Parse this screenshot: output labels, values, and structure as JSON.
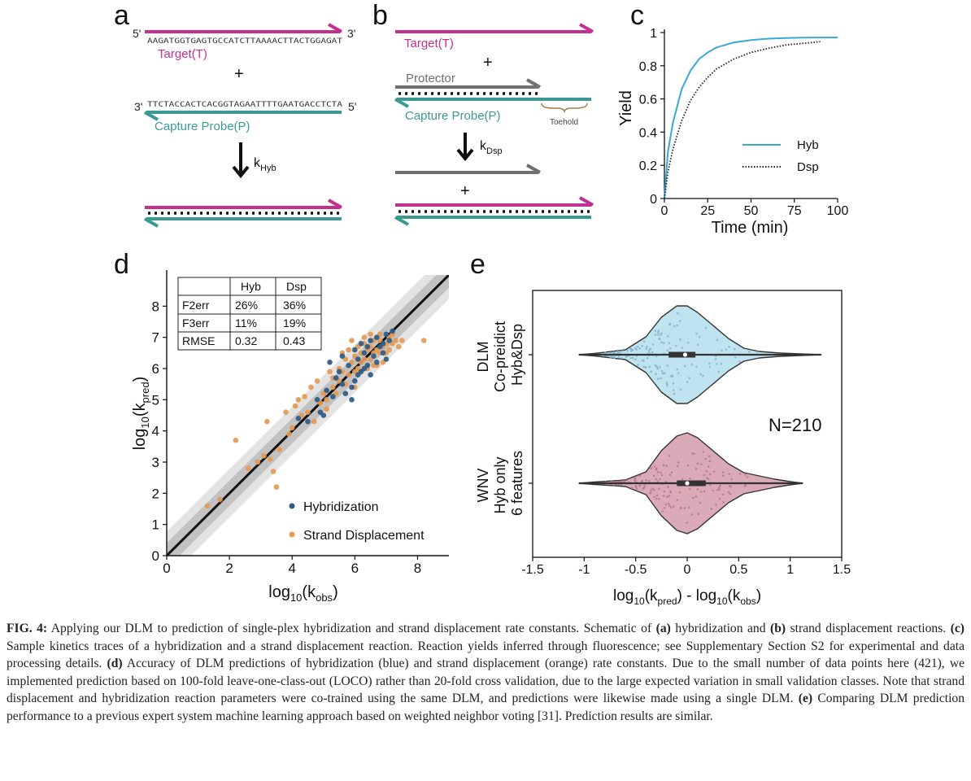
{
  "panels": {
    "a": {
      "label": "a",
      "top_5prime": "5'",
      "top_3prime": "3'",
      "top_seq": "AAGATGGTGAGTGCCATCTTAAAACTTACTGGAGAT",
      "target_label": "Target(T)",
      "plus": "+",
      "bottom_3prime": "3'",
      "bottom_5prime": "5'",
      "bottom_seq": "TTCTACCACTCACGGTAGAATTTTGAATGACCTCTA",
      "probe_label": "Capture Probe(P)",
      "rate_k": "k",
      "rate_sub": "Hyb"
    },
    "b": {
      "label": "b",
      "target_label": "Target(T)",
      "plus1": "+",
      "protector_label": "Protector",
      "probe_label": "Capture Probe(P)",
      "toehold_label": "Toehold",
      "rate_k": "k",
      "rate_sub": "Dsp",
      "plus2": "+"
    },
    "c": {
      "label": "c",
      "ylabel": "Yield",
      "xlabel": "Time (min)",
      "legend": [
        "Hyb",
        "Dsp"
      ]
    },
    "d": {
      "label": "d",
      "xlabel_main": "log",
      "xlabel_sub1": "10",
      "xlabel_paren": "(k",
      "xlabel_sub2": "obs",
      "xlabel_close": ")",
      "ylabel_main": "log",
      "ylabel_sub1": "10",
      "ylabel_paren": "(k",
      "ylabel_sub2": "pred",
      "ylabel_close": ")",
      "table": {
        "headers": [
          "",
          "Hyb",
          "Dsp"
        ],
        "rows": [
          [
            "F2err",
            "26%",
            "36%"
          ],
          [
            "F3err",
            "11%",
            "19%"
          ],
          [
            "RMSE",
            "0.32",
            "0.43"
          ]
        ]
      },
      "legend": [
        "Hybridization",
        "Strand Displacement"
      ]
    },
    "e": {
      "label": "e",
      "group1_lines": [
        "DLM",
        "Co-preidict",
        "Hyb&Dsp"
      ],
      "group2_lines": [
        "WNV",
        "Hyb only",
        "6 features"
      ],
      "n_label": "N=210",
      "xlabel_a": "log",
      "xlabel_b": "10",
      "xlabel_c": "(k",
      "xlabel_d": "pred",
      "xlabel_e": ") - log",
      "xlabel_f": "10",
      "xlabel_g": "(k",
      "xlabel_h": "obs",
      "xlabel_i": ")"
    }
  },
  "colors": {
    "target": "#c2318f",
    "probe": "#3a9a92",
    "protector": "#707070",
    "hyb_curve": "#3aa9d6",
    "hyb_point": "#2d5a86",
    "dsp_point": "#e59a55",
    "violin1": "#bfe3ef",
    "violin2": "#dbaab9"
  },
  "chart_data": [
    {
      "type": "line",
      "panel": "c",
      "xlabel": "Time (min)",
      "ylabel": "Yield",
      "xlim": [
        0,
        100
      ],
      "ylim": [
        0,
        1
      ],
      "xticks": [
        0,
        25,
        50,
        75,
        100
      ],
      "yticks": [
        0,
        0.2,
        0.4,
        0.6,
        0.8,
        1
      ],
      "legend_position": "bottom-right",
      "series": [
        {
          "name": "Hyb",
          "style": "solid",
          "x": [
            0,
            2,
            5,
            10,
            15,
            20,
            25,
            30,
            40,
            50,
            60,
            70,
            80,
            90,
            100
          ],
          "y": [
            0,
            0.28,
            0.46,
            0.66,
            0.77,
            0.84,
            0.88,
            0.91,
            0.94,
            0.955,
            0.963,
            0.967,
            0.969,
            0.97,
            0.97
          ]
        },
        {
          "name": "Dsp",
          "style": "dotted",
          "x": [
            0,
            2,
            5,
            10,
            15,
            20,
            25,
            30,
            40,
            50,
            60,
            70,
            80,
            90
          ],
          "y": [
            0,
            0.16,
            0.3,
            0.47,
            0.59,
            0.67,
            0.73,
            0.78,
            0.84,
            0.88,
            0.905,
            0.925,
            0.935,
            0.945
          ]
        }
      ]
    },
    {
      "type": "scatter",
      "panel": "d",
      "xlim": [
        0,
        9
      ],
      "ylim": [
        0,
        9
      ],
      "xticks": [
        0,
        2,
        4,
        6,
        8
      ],
      "yticks": [
        0,
        1,
        2,
        3,
        4,
        5,
        6,
        7,
        8
      ],
      "diagonal": true,
      "legend_position": "bottom-right",
      "series": [
        {
          "name": "Hybridization",
          "points": [
            [
              4.2,
              4.4
            ],
            [
              4.5,
              4.3
            ],
            [
              4.8,
              5.0
            ],
            [
              4.9,
              4.6
            ],
            [
              5.1,
              5.3
            ],
            [
              5.2,
              6.2
            ],
            [
              5.3,
              5.1
            ],
            [
              5.4,
              5.7
            ],
            [
              5.5,
              5.9
            ],
            [
              5.6,
              6.4
            ],
            [
              5.7,
              5.2
            ],
            [
              5.8,
              6.1
            ],
            [
              5.9,
              5.0
            ],
            [
              6.0,
              6.6
            ],
            [
              6.0,
              5.6
            ],
            [
              6.1,
              6.3
            ],
            [
              6.2,
              6.8
            ],
            [
              6.2,
              5.9
            ],
            [
              6.3,
              6.5
            ],
            [
              6.4,
              6.1
            ],
            [
              6.5,
              6.9
            ],
            [
              6.5,
              5.8
            ],
            [
              6.6,
              6.4
            ],
            [
              6.7,
              7.0
            ],
            [
              6.7,
              6.2
            ],
            [
              6.8,
              6.7
            ],
            [
              6.9,
              6.5
            ],
            [
              7.0,
              7.1
            ],
            [
              7.0,
              6.3
            ],
            [
              7.1,
              6.9
            ],
            [
              7.2,
              7.2
            ],
            [
              5.0,
              4.5
            ],
            [
              5.9,
              5.4
            ],
            [
              6.3,
              6.0
            ],
            [
              6.9,
              6.8
            ],
            [
              5.6,
              5.5
            ],
            [
              6.1,
              5.8
            ],
            [
              6.4,
              6.7
            ]
          ]
        },
        {
          "name": "Strand Displacement",
          "points": [
            [
              1.3,
              1.6
            ],
            [
              1.7,
              1.8
            ],
            [
              2.2,
              3.7
            ],
            [
              2.6,
              2.8
            ],
            [
              2.9,
              3.0
            ],
            [
              3.1,
              3.2
            ],
            [
              3.2,
              4.3
            ],
            [
              3.3,
              3.1
            ],
            [
              3.4,
              2.7
            ],
            [
              3.5,
              2.2
            ],
            [
              3.6,
              3.4
            ],
            [
              3.8,
              4.6
            ],
            [
              3.9,
              3.9
            ],
            [
              4.0,
              4.1
            ],
            [
              4.1,
              4.8
            ],
            [
              4.3,
              4.5
            ],
            [
              4.4,
              5.1
            ],
            [
              4.5,
              4.6
            ],
            [
              4.6,
              5.4
            ],
            [
              4.7,
              4.3
            ],
            [
              4.8,
              5.6
            ],
            [
              4.9,
              4.9
            ],
            [
              5.0,
              5.2
            ],
            [
              5.1,
              4.7
            ],
            [
              5.2,
              5.9
            ],
            [
              5.3,
              5.4
            ],
            [
              5.4,
              5.2
            ],
            [
              5.5,
              6.0
            ],
            [
              5.5,
              5.6
            ],
            [
              5.6,
              5.9
            ],
            [
              5.7,
              6.3
            ],
            [
              5.7,
              5.5
            ],
            [
              5.8,
              6.6
            ],
            [
              5.8,
              5.8
            ],
            [
              5.9,
              6.2
            ],
            [
              6.0,
              6.4
            ],
            [
              6.0,
              5.9
            ],
            [
              6.1,
              6.7
            ],
            [
              6.1,
              6.0
            ],
            [
              6.2,
              6.5
            ],
            [
              6.2,
              6.2
            ],
            [
              6.3,
              6.8
            ],
            [
              6.3,
              6.3
            ],
            [
              6.4,
              6.6
            ],
            [
              6.4,
              6.0
            ],
            [
              6.5,
              6.7
            ],
            [
              6.5,
              6.3
            ],
            [
              6.6,
              6.9
            ],
            [
              6.6,
              6.5
            ],
            [
              6.7,
              6.6
            ],
            [
              6.7,
              6.1
            ],
            [
              6.8,
              6.9
            ],
            [
              6.8,
              6.5
            ],
            [
              6.9,
              6.7
            ],
            [
              6.9,
              6.2
            ],
            [
              7.0,
              6.8
            ],
            [
              7.0,
              6.5
            ],
            [
              7.1,
              7.0
            ],
            [
              7.1,
              6.6
            ],
            [
              7.2,
              6.8
            ],
            [
              7.3,
              6.9
            ],
            [
              7.4,
              6.7
            ],
            [
              7.5,
              6.9
            ],
            [
              8.2,
              6.9
            ],
            [
              5.1,
              5.0
            ],
            [
              5.9,
              6.9
            ],
            [
              6.3,
              7.0
            ],
            [
              6.8,
              7.1
            ],
            [
              7.2,
              7.1
            ],
            [
              4.2,
              5.0
            ],
            [
              5.3,
              5.7
            ],
            [
              6.0,
              5.4
            ],
            [
              6.6,
              6.1
            ],
            [
              5.6,
              6.5
            ],
            [
              6.5,
              7.1
            ]
          ]
        }
      ]
    },
    {
      "type": "violin",
      "panel": "e",
      "xlim": [
        -1.5,
        1.5
      ],
      "xticks": [
        -1.5,
        -1,
        -0.5,
        0,
        0.5,
        1,
        1.5
      ],
      "groups": [
        {
          "name": "DLM Co-preidict Hyb&Dsp",
          "min": -1.05,
          "q1": -0.18,
          "median": -0.02,
          "q3": 0.08,
          "whisker_low": -1.05,
          "whisker_high": 1.3,
          "max": 1.3
        },
        {
          "name": "WNV Hyb only 6 features",
          "min": -1.05,
          "q1": -0.1,
          "median": 0.0,
          "q3": 0.18,
          "whisker_low": -1.05,
          "whisker_high": 1.12,
          "max": 1.12
        }
      ]
    }
  ],
  "caption": {
    "fig": "FIG. 4:",
    "s1": " Applying our DLM to prediction of single-plex hybridization and strand displacement rate constants. Schematic of ",
    "a": "(a)",
    "s2": " hybridization and ",
    "b": "(b)",
    "s3": " strand displacement reactions. ",
    "c": "(c)",
    "s4": " Sample kinetics traces of a hybridization and a strand displacement reaction. Reaction yields inferred through fluorescence; see Supplementary Section S2 for experimental and data processing details. ",
    "d": "(d)",
    "s5": " Accuracy of DLM predictions of hybridization (blue) and strand displacement (orange) rate constants. Due to the small number of data points here (421), we implemented prediction based on 100-fold leave-one-class-out (LOCO) rather than 20-fold cross validation, due to the large expected variation in small validation classes. Note that strand displacement and hybridization reaction parameters were co-trained using the same DLM, and predictions were likewise made using a single DLM. ",
    "e": "(e)",
    "s6": " Comparing DLM prediction performance to a previous expert system machine learning approach based on weighted neighbor voting [31]. Prediction results are similar."
  }
}
